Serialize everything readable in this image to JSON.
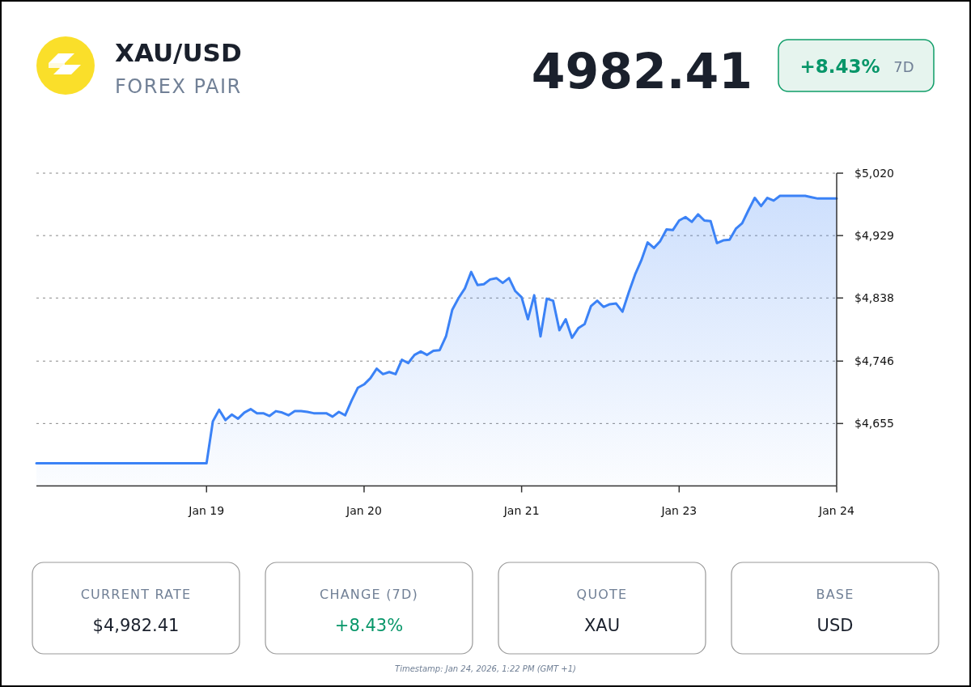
{
  "chart_data": {
    "type": "area",
    "title": "XAU/USD",
    "subtitle": "FOREX PAIR",
    "annotations": [
      "4982.41",
      "+8.43%",
      "7D",
      "CURRENT RATE",
      "$4,982.41",
      "CHANGE (7D)",
      "+8.43%",
      "QUOTE",
      "XAU",
      "BASE",
      "USD",
      "Timestamp: Jan 24, 2026, 1:22 PM (GMT +1)"
    ],
    "categories": [
      null,
      null,
      null,
      null,
      null,
      null,
      null,
      null,
      null,
      null,
      null,
      null,
      null,
      null,
      null,
      null,
      null,
      null,
      null,
      null,
      null,
      null,
      null,
      null,
      null,
      null,
      null,
      "Jan 19",
      null,
      null,
      null,
      null,
      null,
      null,
      null,
      null,
      null,
      null,
      null,
      null,
      null,
      null,
      null,
      null,
      null,
      null,
      null,
      null,
      null,
      null,
      null,
      null,
      "Jan 20",
      null,
      null,
      null,
      null,
      null,
      null,
      null,
      null,
      null,
      null,
      null,
      null,
      null,
      null,
      null,
      null,
      null,
      null,
      null,
      null,
      null,
      null,
      null,
      null,
      "Jan 21",
      null,
      null,
      null,
      null,
      null,
      null,
      null,
      null,
      null,
      null,
      null,
      null,
      null,
      null,
      null,
      null,
      null,
      null,
      null,
      null,
      null,
      null,
      null,
      null,
      "Jan 23",
      null,
      null,
      null,
      null,
      null,
      null,
      null,
      null,
      null,
      null,
      null,
      null,
      null,
      null,
      null,
      null,
      null,
      null,
      null,
      null,
      null,
      null,
      null,
      null,
      "Jan 24"
    ],
    "series": [
      {
        "color": "#3b82f6",
        "values": [
          4597,
          4597,
          4597,
          4597,
          4597,
          4597,
          4597,
          4597,
          4597,
          4597,
          4597,
          4597,
          4597,
          4597,
          4597,
          4597,
          4597,
          4597,
          4597,
          4597,
          4597,
          4597,
          4597,
          4597,
          4597,
          4597,
          4597,
          4597,
          4658,
          4675,
          4660,
          4668,
          4662,
          4671,
          4676,
          4670,
          4670,
          4666,
          4673,
          4671,
          4667,
          4673,
          4673,
          4672,
          4670,
          4670,
          4670,
          4665,
          4672,
          4667,
          4688,
          4707,
          4712,
          4721,
          4735,
          4727,
          4730,
          4727,
          4748,
          4743,
          4755,
          4760,
          4755,
          4761,
          4762,
          4782,
          4821,
          4838,
          4852,
          4876,
          4857,
          4858,
          4865,
          4867,
          4860,
          4867,
          4848,
          4839,
          4807,
          4842,
          4782,
          4837,
          4834,
          4791,
          4807,
          4780,
          4794,
          4800,
          4826,
          4834,
          4825,
          4829,
          4830,
          4818,
          4846,
          4872,
          4893,
          4919,
          4911,
          4921,
          4938,
          4937,
          4951,
          4956,
          4949,
          4960,
          4951,
          4950,
          4918,
          4922,
          4923,
          4939,
          4947,
          4966,
          4984,
          4972,
          4984,
          4980,
          4987,
          4987,
          4987,
          4987,
          4987,
          4985,
          4983,
          4983,
          4983,
          4983
        ]
      }
    ],
    "ylim": [
      4564,
      5020
    ],
    "yticks": [
      {
        "value": 4655,
        "label": "$4,655"
      },
      {
        "value": 4746,
        "label": "$4,746"
      },
      {
        "value": 4838,
        "label": "$4,838"
      },
      {
        "value": 4929,
        "label": "$4,929"
      },
      {
        "value": 5020,
        "label": "$5,020"
      }
    ],
    "grid": "y"
  }
}
